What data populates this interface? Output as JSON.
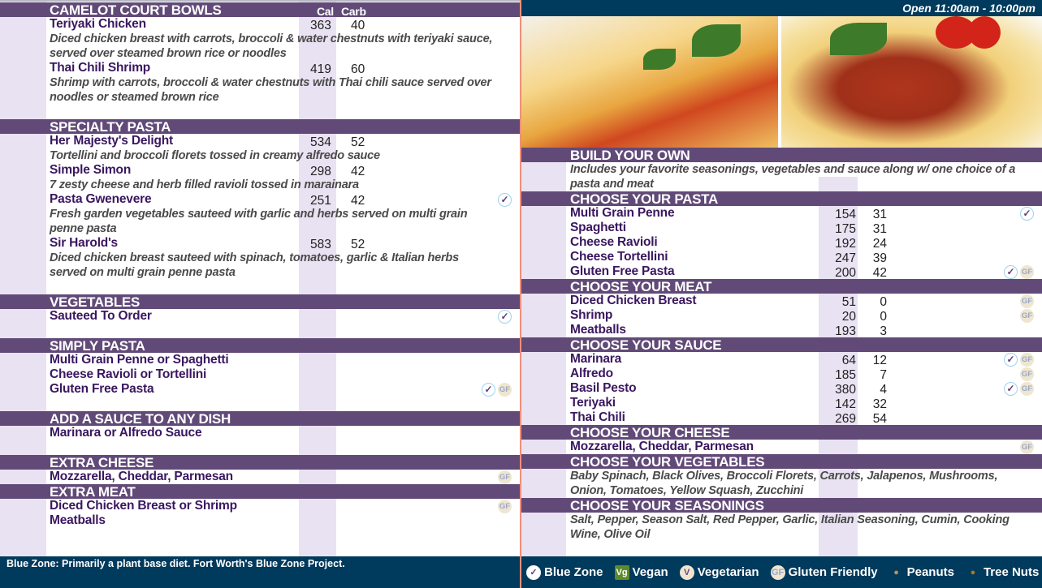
{
  "colors": {
    "header": "#614a78",
    "strip": "#e9e2f2",
    "navy": "#003a5c",
    "item": "#3a1760"
  },
  "hours": "Open 11:00am - 10:00pm",
  "left": {
    "sections": [
      {
        "title": "CAMELOT COURT BOWLS",
        "cal_label": "Cal",
        "carb_label": "Carb",
        "items": [
          {
            "name": "Teriyaki Chicken",
            "cal": "363",
            "carb": "40",
            "icons": [],
            "desc": [
              "Diced chicken breast with carrots, broccoli & water chestnuts with teriyaki sauce,",
              "served over steamed brown rice or noodles"
            ]
          },
          {
            "name": "Thai Chili Shrimp",
            "cal": "419",
            "carb": "60",
            "icons": [],
            "desc": [
              "Shrimp with carrots, broccoli & water chestnuts with Thai chili sauce served over",
              "noodles or steamed brown rice"
            ]
          }
        ]
      },
      {
        "title": "SPECIALTY PASTA",
        "items": [
          {
            "name": "Her Majesty's Delight",
            "cal": "534",
            "carb": "52",
            "icons": [],
            "desc": [
              "Tortellini and broccoli florets tossed in creamy alfredo sauce"
            ]
          },
          {
            "name": "Simple Simon",
            "cal": "298",
            "carb": "42",
            "icons": [],
            "desc": [
              "7 zesty cheese and herb filled ravioli tossed in marainara"
            ]
          },
          {
            "name": "Pasta Gwenevere",
            "cal": "251",
            "carb": "42",
            "icons": [
              "check"
            ],
            "desc": [
              "Fresh garden vegetables sauteed with garlic and herbs served on multi grain",
              "penne pasta"
            ]
          },
          {
            "name": "Sir Harold's",
            "cal": "583",
            "carb": "52",
            "icons": [],
            "desc": [
              "Diced chicken breast sauteed with spinach, tomatoes, garlic & Italian herbs",
              "served on multi grain penne pasta"
            ]
          }
        ]
      },
      {
        "title": "VEGETABLES",
        "items": [
          {
            "name": "Sauteed To Order",
            "icons": [
              "check"
            ]
          }
        ]
      },
      {
        "title": "SIMPLY PASTA",
        "items": [
          {
            "name": "Multi Grain Penne or Spaghetti",
            "icons": []
          },
          {
            "name": "Cheese Ravioli or Tortellini",
            "icons": []
          },
          {
            "name": "Gluten Free Pasta",
            "icons": [
              "check",
              "gf"
            ]
          }
        ]
      },
      {
        "title": "ADD A SAUCE TO ANY DISH",
        "items": [
          {
            "name": "Marinara or Alfredo Sauce",
            "icons": []
          }
        ]
      },
      {
        "title": "EXTRA CHEESE",
        "items": [
          {
            "name": "Mozzarella, Cheddar, Parmesan",
            "icons": [
              "gf"
            ]
          }
        ]
      },
      {
        "title": "EXTRA MEAT",
        "items": [
          {
            "name": "Diced Chicken Breast or Shrimp",
            "icons": [
              "gf"
            ]
          },
          {
            "name": "Meatballs",
            "icons": []
          }
        ]
      }
    ],
    "footer": "Blue Zone: Primarily a plant base diet.  Fort Worth's Blue Zone Project."
  },
  "right": {
    "sections": [
      {
        "title": "BUILD YOUR OWN",
        "items": [],
        "desc": [
          "Includes your favorite seasonings, vegetables and sauce along w/ one choice of a",
          "pasta and meat"
        ]
      },
      {
        "title": "CHOOSE YOUR PASTA",
        "items": [
          {
            "name": "Multi Grain Penne",
            "cal": "154",
            "carb": "31",
            "icons": [
              "check"
            ]
          },
          {
            "name": "Spaghetti",
            "cal": "175",
            "carb": "31",
            "icons": []
          },
          {
            "name": "Cheese Ravioli",
            "cal": "192",
            "carb": "24",
            "icons": []
          },
          {
            "name": "Cheese Tortellini",
            "cal": "247",
            "carb": "39",
            "icons": []
          },
          {
            "name": "Gluten Free Pasta",
            "cal": "200",
            "carb": "42",
            "icons": [
              "check",
              "gf"
            ]
          }
        ]
      },
      {
        "title": "CHOOSE YOUR MEAT",
        "items": [
          {
            "name": "Diced Chicken Breast",
            "cal": "51",
            "carb": "0",
            "icons": [
              "gf"
            ]
          },
          {
            "name": "Shrimp",
            "cal": "20",
            "carb": "0",
            "icons": [
              "gf"
            ]
          },
          {
            "name": "Meatballs",
            "cal": "193",
            "carb": "3",
            "icons": []
          }
        ]
      },
      {
        "title": "CHOOSE YOUR SAUCE",
        "items": [
          {
            "name": "Marinara",
            "cal": "64",
            "carb": "12",
            "icons": [
              "check",
              "gf"
            ]
          },
          {
            "name": "Alfredo",
            "cal": "185",
            "carb": "7",
            "icons": [
              "gf"
            ]
          },
          {
            "name": "Basil Pesto",
            "cal": "380",
            "carb": "4",
            "icons": [
              "check",
              "gf"
            ]
          },
          {
            "name": "Teriyaki",
            "cal": "142",
            "carb": "32",
            "icons": []
          },
          {
            "name": "Thai Chili",
            "cal": "269",
            "carb": "54",
            "icons": []
          }
        ]
      },
      {
        "title": "CHOOSE YOUR CHEESE",
        "items": [
          {
            "name": "Mozzarella, Cheddar, Parmesan",
            "icons": [
              "gf"
            ]
          }
        ]
      },
      {
        "title": "CHOOSE YOUR VEGETABLES",
        "items": [],
        "desc": [
          "Baby Spinach, Black Olives, Broccoli Florets, Carrots, Jalapenos, Mushrooms,",
          "Onion, Tomatoes, Yellow Squash, Zucchini"
        ]
      },
      {
        "title": "CHOOSE YOUR SEASONINGS",
        "items": [],
        "desc": [
          "Salt, Pepper, Season Salt, Red Pepper, Garlic, Italian Seasoning, Cumin, Cooking",
          "Wine, Olive Oil"
        ]
      }
    ]
  },
  "legend": [
    {
      "icon": "blue-zone-check",
      "label": "Blue Zone",
      "glyph": "✓",
      "bg": "#ffffff",
      "fg": "#5b3d7a"
    },
    {
      "icon": "vegan",
      "label": "Vegan",
      "glyph": "Vg",
      "bg": "#5d8a2a",
      "fg": "#ffffff"
    },
    {
      "icon": "vegetarian",
      "label": "Vegetarian",
      "glyph": "V",
      "bg": "#efe6cf",
      "fg": "#6a4a8a"
    },
    {
      "icon": "gluten-friendly",
      "label": "Gluten Friendly",
      "glyph": "GF",
      "bg": "#efe6cf",
      "fg": "#9aa8cc"
    },
    {
      "icon": "peanuts",
      "label": "Peanuts",
      "glyph": "●",
      "bg": "transparent",
      "fg": "#b8925a"
    },
    {
      "icon": "tree-nuts",
      "label": "Tree Nuts",
      "glyph": "●",
      "bg": "transparent",
      "fg": "#a8782a"
    }
  ],
  "icon_glyphs": {
    "check": "✓",
    "gf": "GF"
  }
}
